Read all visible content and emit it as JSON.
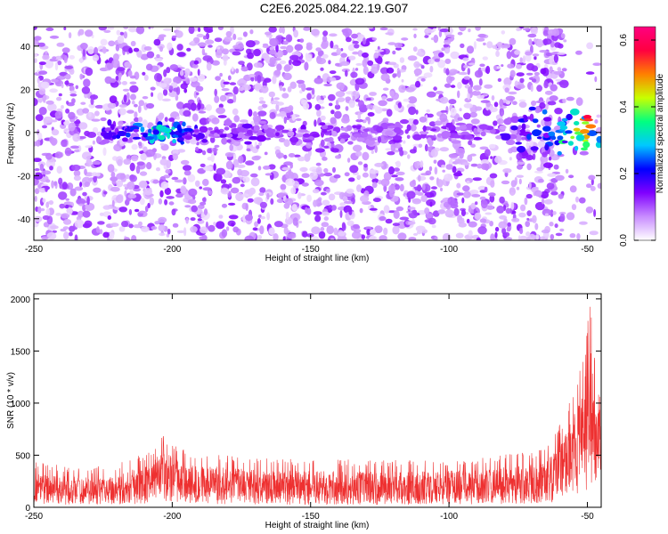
{
  "title": "C2E6.2025.084.22.19.G07",
  "chart_data": [
    {
      "type": "heatmap",
      "xlabel": "Height of straight line (km)",
      "ylabel": "Frequency (Hz)",
      "xlim": [
        -250,
        -45
      ],
      "ylim": [
        -50,
        49
      ],
      "x_ticks": [
        -250,
        -200,
        -150,
        -100,
        -50
      ],
      "y_ticks": [
        -40,
        -20,
        0,
        20,
        40
      ],
      "colorbar": {
        "label": "Normalized spectral amplitude",
        "range": [
          0,
          0.64
        ],
        "ticks": [
          0,
          0.2,
          0.4,
          0.6
        ],
        "colors": [
          "#ffffff",
          "#c88cff",
          "#8000ff",
          "#0000ff",
          "#00c8ff",
          "#00ff80",
          "#c8ff00",
          "#ff8000",
          "#ff0040",
          "#ff0080"
        ]
      },
      "signal_band": {
        "center_frequency": 0,
        "points": [
          {
            "x": -225,
            "amp": 0.18
          },
          {
            "x": -210,
            "amp": 0.28
          },
          {
            "x": -203,
            "amp": 0.4
          },
          {
            "x": -195,
            "amp": 0.22
          },
          {
            "x": -185,
            "amp": 0.16
          },
          {
            "x": -170,
            "amp": 0.15
          },
          {
            "x": -160,
            "amp": 0.14
          },
          {
            "x": -150,
            "amp": 0.14
          },
          {
            "x": -130,
            "amp": 0.12
          },
          {
            "x": -112,
            "amp": 0.12
          },
          {
            "x": -85,
            "amp": 0.14
          },
          {
            "x": -75,
            "amp": 0.2
          },
          {
            "x": -65,
            "amp": 0.28
          },
          {
            "x": -55,
            "amp": 0.42
          },
          {
            "x": -50,
            "amp": 0.55
          },
          {
            "x": -47,
            "amp": 0.45
          }
        ]
      }
    },
    {
      "type": "line",
      "xlabel": "Height of straight line (km)",
      "ylabel": "SNR (10 * v/v)",
      "xlim": [
        -250,
        -45
      ],
      "ylim": [
        0,
        2050
      ],
      "x_ticks": [
        -250,
        -200,
        -150,
        -100,
        -50
      ],
      "y_ticks": [
        0,
        500,
        1000,
        1500,
        2000
      ],
      "color": "#ee3030",
      "envelope": [
        {
          "x": -250,
          "low": 60,
          "high": 440
        },
        {
          "x": -240,
          "low": 40,
          "high": 400
        },
        {
          "x": -230,
          "low": 40,
          "high": 380
        },
        {
          "x": -220,
          "low": 40,
          "high": 420
        },
        {
          "x": -210,
          "low": 60,
          "high": 520
        },
        {
          "x": -203,
          "low": 90,
          "high": 700
        },
        {
          "x": -195,
          "low": 60,
          "high": 560
        },
        {
          "x": -185,
          "low": 50,
          "high": 520
        },
        {
          "x": -170,
          "low": 40,
          "high": 480
        },
        {
          "x": -150,
          "low": 40,
          "high": 460
        },
        {
          "x": -130,
          "low": 40,
          "high": 460
        },
        {
          "x": -110,
          "low": 40,
          "high": 460
        },
        {
          "x": -90,
          "low": 40,
          "high": 480
        },
        {
          "x": -75,
          "low": 50,
          "high": 520
        },
        {
          "x": -65,
          "low": 60,
          "high": 560
        },
        {
          "x": -60,
          "low": 100,
          "high": 800
        },
        {
          "x": -56,
          "low": 150,
          "high": 1100
        },
        {
          "x": -52,
          "low": 250,
          "high": 1400
        },
        {
          "x": -49,
          "low": 300,
          "high": 2040
        },
        {
          "x": -47,
          "low": 250,
          "high": 1300
        },
        {
          "x": -45,
          "low": 200,
          "high": 1200
        }
      ]
    }
  ]
}
